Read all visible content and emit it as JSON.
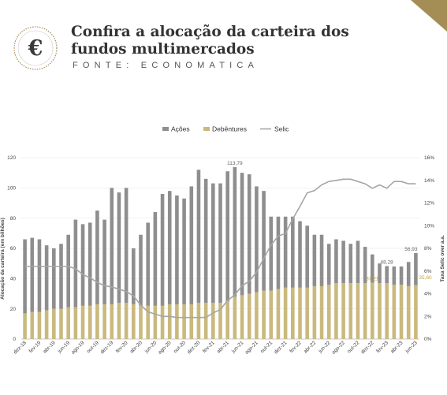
{
  "header": {
    "title": "Confira a alocação da carteira dos fundos multimercados",
    "source": "FONTE: ECONOMATICA",
    "logo_letter": "€"
  },
  "colors": {
    "acoes": "#8e8e8e",
    "debentures": "#c9b97e",
    "selic": "#a6a6a6",
    "accent": "#a48e55",
    "annotation_gold": "#c9a530"
  },
  "chart_data": {
    "type": "bar",
    "legend": [
      "Ações",
      "Debêntures",
      "Selic"
    ],
    "legend_position": "top-center",
    "ylabel_left": "Alocação da carteira (em bilhões)",
    "ylabel_right": "Taxa Selic over a.a.",
    "ylim_left": [
      0,
      120
    ],
    "yticks_left": [
      "0",
      "20",
      "40",
      "60",
      "80",
      "100",
      "120"
    ],
    "ylim_right": [
      0,
      16
    ],
    "yticks_right": [
      "0%",
      "2%",
      "4%",
      "6%",
      "8%",
      "10%",
      "12%",
      "14%",
      "16%"
    ],
    "x_tick_labels": [
      "dez-18",
      "fev-19",
      "abr-19",
      "jun-19",
      "ago-19",
      "out-19",
      "dez-19",
      "fev-20",
      "abr-20",
      "jun-20",
      "ago-20",
      "out-20",
      "dez-20",
      "fev-21",
      "abr-21",
      "jun-21",
      "ago-21",
      "out-21",
      "dez-21",
      "fev-22",
      "abr-22",
      "jun-22",
      "ago-22",
      "out-22",
      "dez-22",
      "fev-23",
      "abr-23",
      "jun-23"
    ],
    "series": [
      {
        "name": "Ações",
        "values": [
          66,
          67,
          66,
          62,
          60,
          63,
          69,
          79,
          76,
          77,
          85,
          79,
          100,
          97,
          100,
          60,
          69,
          77,
          84,
          96,
          98,
          95,
          93,
          101,
          112,
          106,
          103,
          103,
          111,
          113.79,
          110,
          109,
          101,
          98,
          81,
          81,
          81,
          81,
          78,
          75,
          69,
          69,
          63,
          66,
          65,
          63,
          65,
          61,
          56,
          50,
          48.28,
          48,
          48,
          51,
          56.93
        ]
      },
      {
        "name": "Debêntures",
        "values": [
          17,
          18,
          18,
          19,
          20,
          20,
          21,
          21,
          22,
          22,
          23,
          23,
          23,
          24,
          24,
          23,
          22,
          22,
          22,
          22,
          23,
          23,
          23,
          23,
          24,
          24,
          24,
          24,
          25,
          28,
          29,
          30,
          31,
          32,
          32,
          33,
          34,
          34,
          34,
          34,
          35,
          35,
          36,
          37,
          37,
          37,
          37,
          37,
          37.21,
          37,
          37,
          36,
          36,
          35,
          35.6
        ]
      },
      {
        "name": "Selic",
        "values": [
          6.4,
          6.4,
          6.4,
          6.4,
          6.4,
          6.4,
          6.4,
          6.2,
          5.7,
          5.4,
          5.0,
          4.7,
          4.6,
          4.4,
          4.2,
          3.8,
          3.0,
          2.4,
          2.2,
          2.0,
          2.0,
          1.9,
          1.9,
          1.9,
          1.9,
          1.9,
          2.3,
          2.6,
          3.4,
          3.9,
          4.7,
          5.1,
          5.9,
          7.1,
          8.3,
          9.1,
          9.3,
          10.6,
          11.7,
          12.9,
          13.1,
          13.6,
          13.9,
          14.0,
          14.1,
          14.1,
          13.9,
          13.7,
          13.3,
          13.6,
          13.3,
          13.9,
          13.9,
          13.7,
          13.7
        ]
      }
    ],
    "annotations": [
      {
        "label": "113,79",
        "series": "Ações",
        "index": 29
      },
      {
        "label": "37,21",
        "series": "Debêntures",
        "index": 48
      },
      {
        "label": "48,28",
        "series": "Ações",
        "index": 50
      },
      {
        "label": "56,93",
        "series": "Ações",
        "index": 54
      },
      {
        "label": "35,60",
        "series": "Debêntures",
        "index": 54
      }
    ]
  }
}
